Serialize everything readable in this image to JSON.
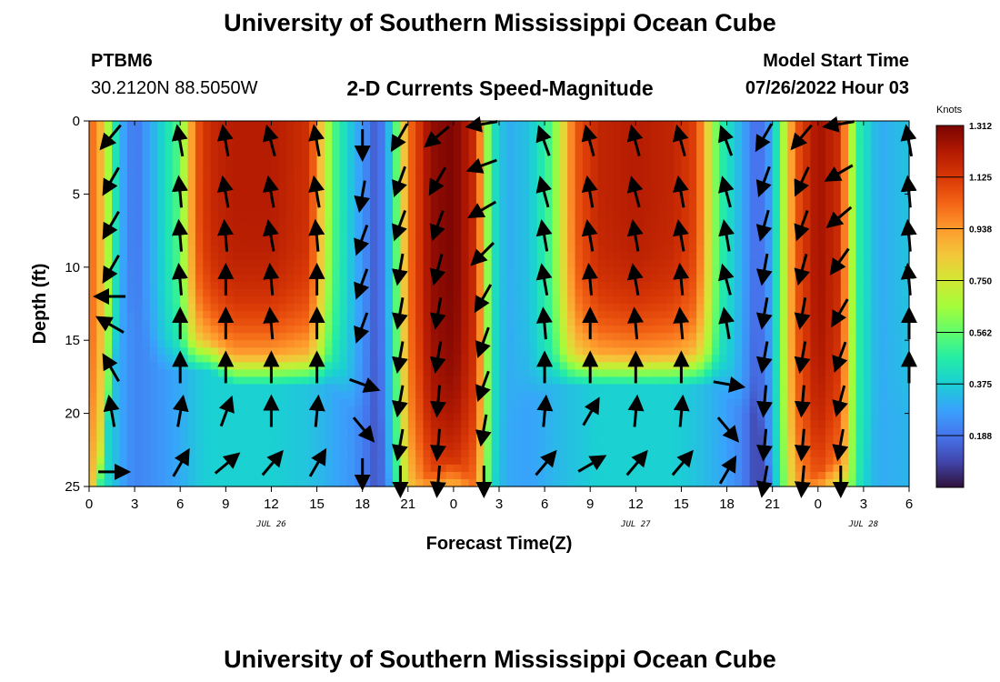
{
  "header": {
    "title": "University of Southern Mississippi Ocean Cube",
    "station_id": "PTBM6",
    "station_coords": "30.2120N  88.5050W",
    "subtitle": "2-D Currents Speed-Magnitude",
    "model_start_label": "Model Start Time",
    "model_start_value": "07/26/2022 Hour 03"
  },
  "footer": {
    "title": "University of Southern Mississippi Ocean Cube"
  },
  "chart_data": {
    "type": "heatmap",
    "xlabel": "Forecast Time(Z)",
    "ylabel": "Depth (ft)",
    "x_ticks": [
      "0",
      "3",
      "6",
      "9",
      "12",
      "15",
      "18",
      "21",
      "0",
      "3",
      "6",
      "9",
      "12",
      "15",
      "18",
      "21",
      "0",
      "3",
      "6"
    ],
    "x_hours_range": [
      0,
      54
    ],
    "date_labels": [
      {
        "label": "JUL 26",
        "hour": 12
      },
      {
        "label": "JUL 27",
        "hour": 36
      },
      {
        "label": "JUL 28",
        "hour": 51
      }
    ],
    "y_ticks": [
      0,
      5,
      10,
      15,
      20,
      25
    ],
    "ylim": [
      0,
      25
    ],
    "y_inverted": true,
    "colorbar": {
      "label": "Knots",
      "ticks": [
        "1.312",
        "1.125",
        "0.938",
        "0.750",
        "0.562",
        "0.375",
        "0.188"
      ],
      "range": [
        0,
        1.312
      ],
      "colors": [
        "#30123b",
        "#4145ab",
        "#4675ed",
        "#39a2fc",
        "#1bcfd4",
        "#24eca6",
        "#61fc6c",
        "#a4fc3b",
        "#d1e834",
        "#f3c63a",
        "#fe9b2d",
        "#f36315",
        "#d93806",
        "#b11901",
        "#7a0403"
      ]
    },
    "speed_profile": {
      "hours": [
        0.5,
        2,
        3,
        4.5,
        6,
        7,
        8,
        9.5,
        12,
        14.5,
        16,
        17.5,
        19,
        20,
        21,
        22.5,
        24,
        25.5,
        26.5,
        27.5,
        29,
        30.5,
        32,
        33.5,
        36,
        38.5,
        40,
        41.5,
        43,
        44,
        45,
        46.5,
        48,
        49.5,
        50.5,
        52,
        54
      ],
      "surface_knots": [
        1.0,
        0.32,
        0.18,
        0.35,
        0.55,
        1.05,
        1.17,
        1.21,
        1.21,
        1.15,
        0.55,
        0.32,
        0.12,
        0.4,
        1.0,
        1.27,
        1.31,
        1.15,
        0.45,
        0.3,
        0.35,
        0.55,
        1.05,
        1.18,
        1.21,
        1.18,
        1.1,
        0.5,
        0.3,
        0.15,
        0.3,
        1.05,
        1.25,
        1.15,
        0.5,
        0.3,
        0.35
      ],
      "bottom_knots": [
        0.5,
        0.3,
        0.22,
        0.25,
        0.3,
        0.35,
        0.38,
        0.38,
        0.38,
        0.35,
        0.3,
        0.25,
        0.12,
        0.3,
        0.5,
        0.75,
        0.85,
        0.7,
        0.4,
        0.3,
        0.28,
        0.32,
        0.35,
        0.38,
        0.38,
        0.38,
        0.35,
        0.3,
        0.22,
        0.08,
        0.2,
        0.6,
        0.78,
        0.7,
        0.45,
        0.3,
        0.32
      ],
      "flow_depth_ft": [
        25,
        12,
        12,
        15,
        15,
        15,
        15,
        16,
        16,
        16,
        16,
        18,
        18,
        25,
        25,
        24,
        23,
        25,
        25,
        18,
        17,
        16,
        16,
        16,
        16,
        16,
        16,
        16,
        18,
        18,
        25,
        25,
        24,
        23,
        25,
        18,
        18
      ]
    },
    "vectors": [
      {
        "hour": 1.5,
        "depths": [
          1,
          4,
          7,
          10,
          12,
          14,
          17,
          20,
          24
        ],
        "angles": [
          220,
          210,
          210,
          210,
          270,
          300,
          330,
          350,
          90
        ]
      },
      {
        "hour": 6,
        "depths": [
          1.5,
          5,
          8,
          11,
          14,
          17,
          20,
          23.5
        ],
        "angles": [
          350,
          355,
          355,
          355,
          0,
          0,
          10,
          30
        ]
      },
      {
        "hour": 9,
        "depths": [
          1.5,
          5,
          8,
          11,
          14,
          17,
          20,
          23.5
        ],
        "angles": [
          350,
          350,
          355,
          0,
          0,
          0,
          20,
          50
        ]
      },
      {
        "hour": 12,
        "depths": [
          1.5,
          5,
          8,
          11,
          14,
          17,
          20,
          23.5
        ],
        "angles": [
          345,
          350,
          350,
          355,
          355,
          0,
          0,
          40
        ]
      },
      {
        "hour": 15,
        "depths": [
          1.5,
          5,
          8,
          11,
          14,
          17,
          20,
          23.5
        ],
        "angles": [
          350,
          350,
          355,
          0,
          0,
          0,
          5,
          30
        ]
      },
      {
        "hour": 18,
        "depths": [
          1.5,
          5,
          8,
          11,
          14,
          18,
          21,
          24
        ],
        "angles": [
          180,
          190,
          200,
          200,
          200,
          110,
          140,
          180
        ]
      },
      {
        "hour": 20.5,
        "depths": [
          1,
          4,
          7,
          10,
          13,
          16,
          19,
          22,
          24.5
        ],
        "angles": [
          210,
          200,
          200,
          190,
          190,
          190,
          190,
          190,
          180
        ]
      },
      {
        "hour": 23,
        "depths": [
          1,
          4,
          7,
          10,
          13,
          16,
          19,
          22,
          24.5
        ],
        "angles": [
          230,
          210,
          200,
          195,
          190,
          190,
          185,
          185,
          185
        ]
      },
      {
        "hour": 26,
        "depths": [
          0.2,
          3,
          6,
          9,
          12,
          15,
          18,
          21,
          24.5
        ],
        "angles": [
          260,
          250,
          240,
          225,
          210,
          200,
          200,
          190,
          180
        ]
      },
      {
        "hour": 30,
        "depths": [
          1.5,
          5,
          8,
          11,
          14,
          17,
          20,
          23.5
        ],
        "angles": [
          340,
          345,
          350,
          350,
          355,
          0,
          5,
          40
        ]
      },
      {
        "hour": 33,
        "depths": [
          1.5,
          5,
          8,
          11,
          14,
          17,
          20,
          23.5
        ],
        "angles": [
          345,
          350,
          350,
          355,
          0,
          0,
          30,
          60
        ]
      },
      {
        "hour": 36,
        "depths": [
          1.5,
          5,
          8,
          11,
          14,
          17,
          20,
          23.5
        ],
        "angles": [
          345,
          345,
          350,
          350,
          355,
          0,
          5,
          40
        ]
      },
      {
        "hour": 39,
        "depths": [
          1.5,
          5,
          8,
          11,
          14,
          17,
          20,
          23.5
        ],
        "angles": [
          345,
          350,
          350,
          355,
          355,
          0,
          5,
          40
        ]
      },
      {
        "hour": 42,
        "depths": [
          1.5,
          5,
          8,
          11,
          14,
          18,
          21,
          24
        ],
        "angles": [
          340,
          345,
          350,
          345,
          350,
          100,
          140,
          30
        ]
      },
      {
        "hour": 44.5,
        "depths": [
          1,
          4,
          7,
          10,
          13,
          16,
          19,
          22,
          24.5
        ],
        "angles": [
          210,
          200,
          195,
          190,
          190,
          190,
          185,
          185,
          190
        ]
      },
      {
        "hour": 47,
        "depths": [
          1,
          4,
          7,
          10,
          13,
          16,
          19,
          22,
          24.5
        ],
        "angles": [
          220,
          205,
          200,
          195,
          190,
          190,
          185,
          185,
          185
        ]
      },
      {
        "hour": 49.5,
        "depths": [
          0.2,
          3.5,
          6.5,
          9.5,
          13,
          16,
          19,
          22,
          24.5
        ],
        "angles": [
          260,
          240,
          230,
          215,
          210,
          200,
          195,
          190,
          180
        ]
      },
      {
        "hour": 54,
        "depths": [
          1.5,
          5,
          8,
          11,
          14,
          17
        ],
        "angles": [
          350,
          355,
          355,
          355,
          0,
          0
        ]
      }
    ]
  }
}
